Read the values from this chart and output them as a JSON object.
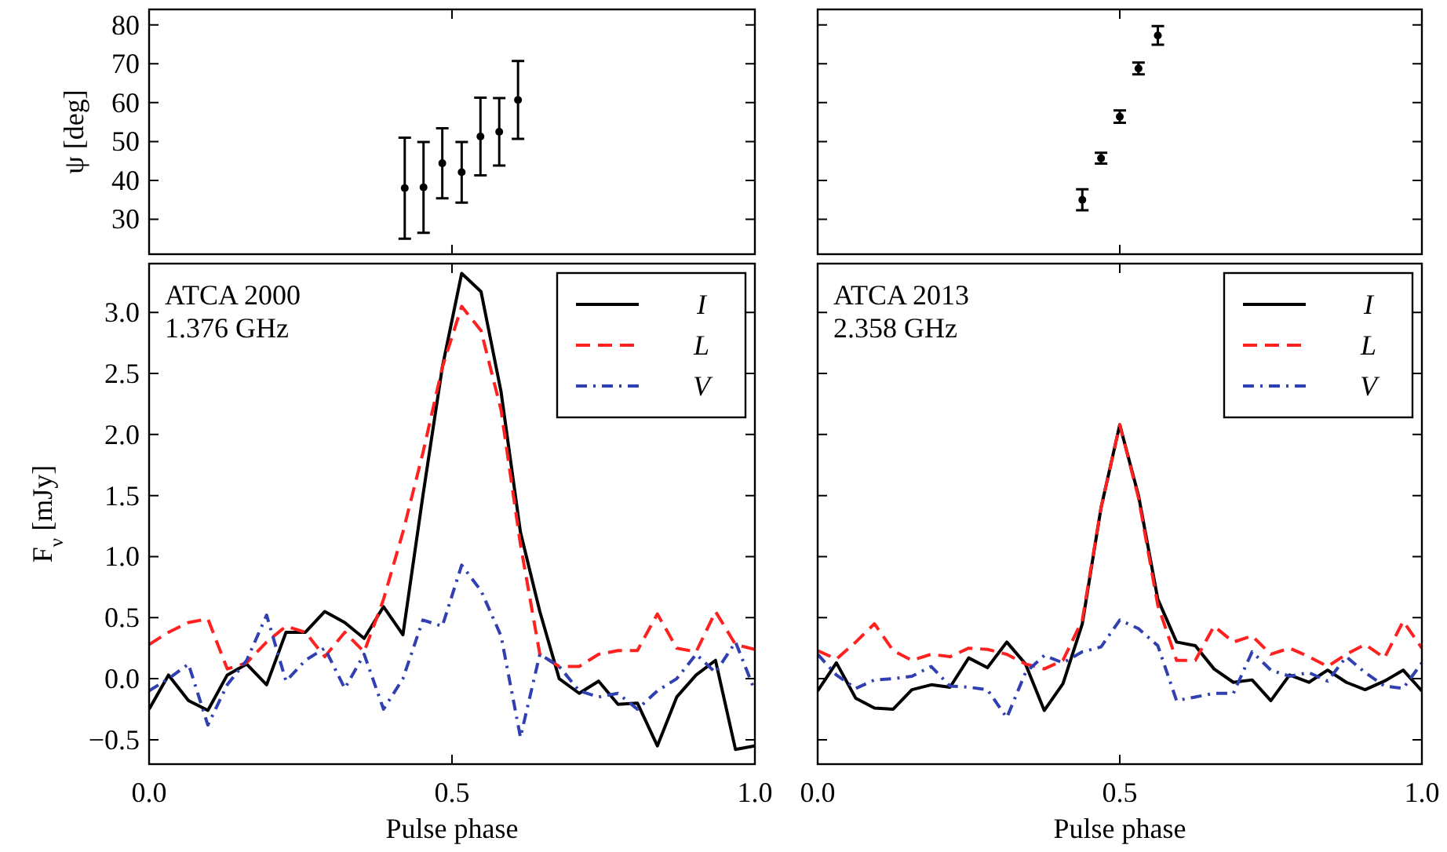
{
  "chart_data": [
    {
      "type": "scatter",
      "ylabel": "ψ [deg]",
      "xlim": [
        0,
        1
      ],
      "ylim": [
        21,
        84
      ],
      "xticks": [
        {
          "value": 0,
          "label": null
        },
        {
          "value": 0.5,
          "label": null
        },
        {
          "value": 1,
          "label": null
        }
      ],
      "yticks": [
        30,
        40,
        50,
        60,
        70,
        80
      ],
      "tick_labels": "y",
      "marker": "circle",
      "series": [
        {
          "color": "#000000",
          "x": [
            0.422,
            0.453,
            0.484,
            0.516,
            0.547,
            0.578,
            0.609
          ],
          "values": [
            38,
            38.2,
            44.4,
            42.1,
            51.3,
            52.5,
            60.7
          ],
          "errors": [
            13,
            11.7,
            9,
            7.8,
            10,
            8.7,
            10
          ]
        }
      ]
    },
    {
      "type": "scatter",
      "xlim": [
        0,
        1
      ],
      "ylim": [
        21,
        84
      ],
      "xticks": [
        {
          "value": 0,
          "label": null
        },
        {
          "value": 0.5,
          "label": null
        },
        {
          "value": 1,
          "label": null
        }
      ],
      "yticks": [
        {
          "value": 30,
          "label": null
        },
        {
          "value": 40,
          "label": null
        },
        {
          "value": 50,
          "label": null
        },
        {
          "value": 60,
          "label": null
        },
        {
          "value": 70,
          "label": null
        },
        {
          "value": 80,
          "label": null
        }
      ],
      "tick_labels": false,
      "marker": "circle",
      "series": [
        {
          "color": "#000000",
          "x": [
            0.438,
            0.469,
            0.5,
            0.531,
            0.563
          ],
          "values": [
            35,
            45.7,
            56.4,
            68.8,
            77.3
          ],
          "errors": [
            2.7,
            1.4,
            1.6,
            1.5,
            2.4
          ]
        }
      ]
    },
    {
      "type": "line",
      "xlabel": "Pulse phase",
      "ylabel": "F$_{ν}$ [mJy]",
      "annotations": [
        "ATCA 2000",
        "1.376 GHz"
      ],
      "xlim": [
        0,
        1
      ],
      "ylim": [
        -0.7,
        3.4
      ],
      "xticks": [
        {
          "value": 0,
          "label": "0.0"
        },
        {
          "value": 0.5,
          "label": "0.5"
        },
        {
          "value": 1,
          "label": "1.0"
        }
      ],
      "yticks": [
        {
          "value": -0.5,
          "label": "−0.5"
        },
        {
          "value": 0,
          "label": "0.0"
        },
        {
          "value": 0.5,
          "label": "0.5"
        },
        {
          "value": 1,
          "label": "1.0"
        },
        {
          "value": 1.5,
          "label": "1.5"
        },
        {
          "value": 2,
          "label": "2.0"
        },
        {
          "value": 2.5,
          "label": "2.5"
        },
        {
          "value": 3,
          "label": "3.0"
        }
      ],
      "legend": "top right",
      "x": [
        0,
        0.032,
        0.065,
        0.097,
        0.129,
        0.161,
        0.194,
        0.226,
        0.258,
        0.29,
        0.323,
        0.355,
        0.387,
        0.419,
        0.452,
        0.484,
        0.516,
        0.548,
        0.581,
        0.613,
        0.645,
        0.677,
        0.71,
        0.742,
        0.774,
        0.806,
        0.839,
        0.871,
        0.903,
        0.935,
        0.968,
        1
      ],
      "series": [
        {
          "name": "I",
          "color": "#000000",
          "line_style": "solid",
          "values": [
            -0.25,
            0.03,
            -0.18,
            -0.26,
            0.03,
            0.12,
            -0.05,
            0.38,
            0.38,
            0.55,
            0.46,
            0.33,
            0.59,
            0.36,
            1.5,
            2.55,
            3.32,
            3.17,
            2.35,
            1.2,
            0.55,
            0,
            -0.12,
            -0.02,
            -0.21,
            -0.2,
            -0.55,
            -0.15,
            0.03,
            0.15,
            -0.58,
            -0.55
          ]
        },
        {
          "name": "L",
          "color": "#ff2020",
          "line_style": "dashed",
          "values": [
            0.28,
            0.38,
            0.46,
            0.49,
            0.08,
            0.13,
            0.3,
            0.43,
            0.38,
            0.18,
            0.38,
            0.22,
            0.65,
            1.2,
            1.85,
            2.55,
            3.05,
            2.85,
            2.2,
            1.1,
            0.2,
            0.1,
            0.1,
            0.2,
            0.23,
            0.23,
            0.53,
            0.25,
            0.22,
            0.55,
            0.28,
            0.24
          ]
        },
        {
          "name": "V",
          "color": "#3040b0",
          "line_style": "dotted",
          "values": [
            -0.1,
            0,
            0.12,
            -0.38,
            -0.05,
            0.15,
            0.52,
            -0.02,
            0.15,
            0.25,
            -0.08,
            0.2,
            -0.25,
            0,
            0.48,
            0.43,
            0.93,
            0.72,
            0.35,
            -0.48,
            0.2,
            0.1,
            -0.1,
            -0.15,
            -0.12,
            -0.25,
            -0.1,
            0,
            0.2,
            0.05,
            0.3,
            -0.1
          ]
        }
      ]
    },
    {
      "type": "line",
      "xlabel": "Pulse phase",
      "annotations": [
        "ATCA 2013",
        "2.358 GHz"
      ],
      "xlim": [
        0,
        1
      ],
      "ylim": [
        -0.7,
        3.4
      ],
      "xticks": [
        {
          "value": 0,
          "label": "0.0"
        },
        {
          "value": 0.5,
          "label": "0.5"
        },
        {
          "value": 1,
          "label": "1.0"
        }
      ],
      "yticks": [
        {
          "value": -0.5,
          "label": null
        },
        {
          "value": 0,
          "label": null
        },
        {
          "value": 0.5,
          "label": null
        },
        {
          "value": 1,
          "label": null
        },
        {
          "value": 1.5,
          "label": null
        },
        {
          "value": 2,
          "label": null
        },
        {
          "value": 2.5,
          "label": null
        },
        {
          "value": 3,
          "label": null
        }
      ],
      "tick_labels": "x",
      "legend": "top right",
      "x": [
        0,
        0.031,
        0.063,
        0.094,
        0.125,
        0.156,
        0.188,
        0.219,
        0.25,
        0.281,
        0.313,
        0.344,
        0.375,
        0.406,
        0.438,
        0.469,
        0.5,
        0.531,
        0.563,
        0.594,
        0.625,
        0.656,
        0.688,
        0.719,
        0.75,
        0.781,
        0.813,
        0.844,
        0.875,
        0.906,
        0.938,
        0.969,
        1
      ],
      "series": [
        {
          "name": "I",
          "color": "#000000",
          "line_style": "solid",
          "values": [
            -0.1,
            0.13,
            -0.16,
            -0.24,
            -0.25,
            -0.09,
            -0.05,
            -0.07,
            0.17,
            0.09,
            0.3,
            0.12,
            -0.26,
            -0.04,
            0.45,
            1.4,
            2.08,
            1.5,
            0.65,
            0.3,
            0.27,
            0.08,
            -0.03,
            -0.01,
            -0.18,
            0.03,
            -0.03,
            0.07,
            -0.03,
            -0.09,
            -0.02,
            0.07,
            -0.1
          ]
        },
        {
          "name": "L",
          "color": "#ff2020",
          "line_style": "dashed",
          "values": [
            0.23,
            0.16,
            0.3,
            0.45,
            0.23,
            0.15,
            0.2,
            0.18,
            0.25,
            0.24,
            0.2,
            0.12,
            0.08,
            0.15,
            0.48,
            1.4,
            2.08,
            1.48,
            0.6,
            0.15,
            0.15,
            0.43,
            0.3,
            0.35,
            0.2,
            0.25,
            0.18,
            0.1,
            0.2,
            0.28,
            0.17,
            0.47,
            0.25
          ]
        },
        {
          "name": "V",
          "color": "#3040b0",
          "line_style": "dotted",
          "values": [
            0.2,
            0.03,
            -0.08,
            -0.01,
            0,
            0.02,
            0.1,
            -0.06,
            -0.07,
            -0.09,
            -0.32,
            0.05,
            0.19,
            0.13,
            0.22,
            0.26,
            0.48,
            0.41,
            0.27,
            -0.18,
            -0.15,
            -0.12,
            -0.12,
            0.22,
            0.07,
            0.02,
            0.05,
            -0.02,
            0.18,
            0.05,
            -0.06,
            -0.08,
            0.13
          ]
        }
      ]
    }
  ]
}
